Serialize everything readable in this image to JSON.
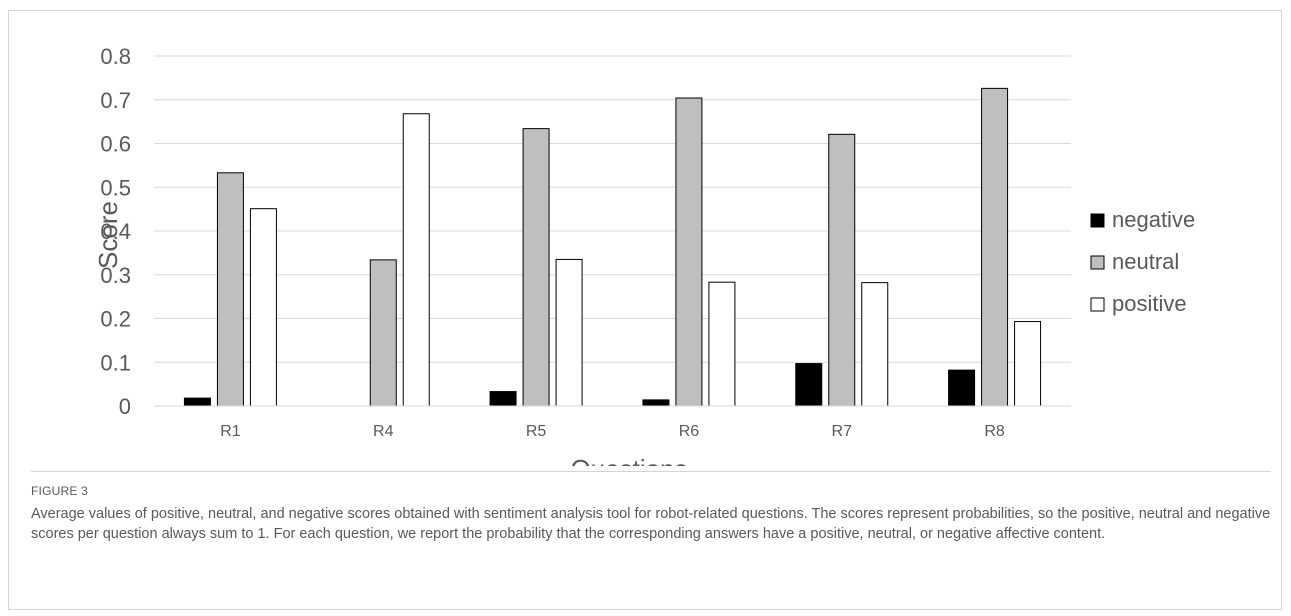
{
  "chart_data": {
    "type": "bar",
    "title": "",
    "xlabel": "Questions",
    "ylabel": "Score",
    "ylim": [
      0,
      0.8
    ],
    "yticks": [
      "0",
      "0.1",
      "0.2",
      "0.3",
      "0.4",
      "0.5",
      "0.6",
      "0.7",
      "0.8"
    ],
    "categories": [
      "R1",
      "R4",
      "R5",
      "R6",
      "R7",
      "R8"
    ],
    "grid": true,
    "legend_position": "right",
    "series": [
      {
        "name": "negative",
        "color": "#000000",
        "values": [
          0.018,
          0.0,
          0.033,
          0.014,
          0.097,
          0.082
        ]
      },
      {
        "name": "neutral",
        "color": "#bfbfbf",
        "values": [
          0.533,
          0.334,
          0.634,
          0.704,
          0.621,
          0.726
        ]
      },
      {
        "name": "positive",
        "color": "#ffffff",
        "values": [
          0.451,
          0.668,
          0.335,
          0.283,
          0.282,
          0.193
        ]
      }
    ]
  },
  "caption": {
    "label": "FIGURE 3",
    "text": "Average values of positive, neutral, and negative scores obtained with sentiment analysis tool for robot-related questions. The scores represent probabilities, so the positive, neutral and negative scores per question always sum to 1. For each question, we report the probability that the corresponding answers have a positive, neutral, or negative affective content."
  }
}
